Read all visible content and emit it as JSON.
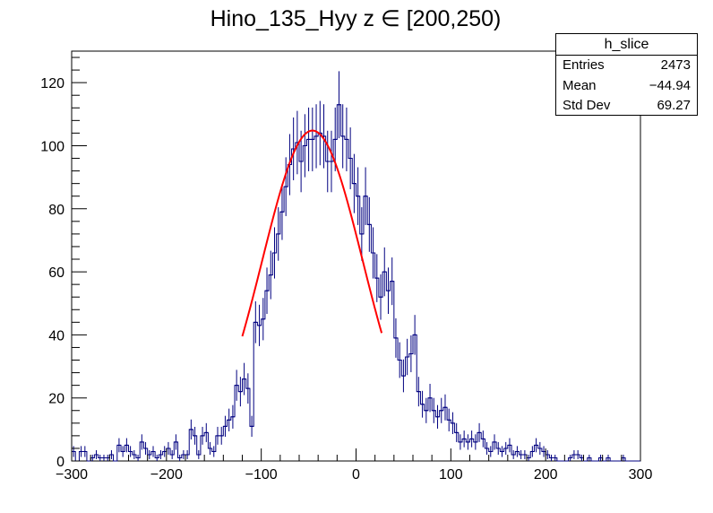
{
  "chart_data": {
    "type": "histogram",
    "title": "Hino_135_Hyy z  ∈ [200,250)",
    "xlabel": "",
    "ylabel": "",
    "xlim": [
      -300,
      300
    ],
    "ylim": [
      0,
      130
    ],
    "x_ticks": [
      "−300",
      "−200",
      "−100",
      "0",
      "100",
      "200",
      "300"
    ],
    "x_tick_values": [
      -300,
      -200,
      -100,
      0,
      100,
      200,
      300
    ],
    "y_ticks": [
      "0",
      "20",
      "40",
      "60",
      "80",
      "100",
      "120"
    ],
    "y_tick_values": [
      0,
      20,
      40,
      60,
      80,
      100,
      120
    ],
    "grid": false,
    "histogram_color": "#000080",
    "fit_color": "#ff0000",
    "bin_width": 4,
    "bin_start": -300,
    "counts": [
      3,
      0,
      3,
      3,
      0,
      1,
      2,
      1,
      1,
      1,
      2,
      0,
      5,
      3,
      5,
      3,
      2,
      1,
      6,
      4,
      2,
      3,
      1,
      2,
      3,
      4,
      2,
      6,
      1,
      2,
      2,
      10,
      8,
      2,
      8,
      9,
      4,
      3,
      8,
      8,
      11,
      13,
      14,
      24,
      22,
      26,
      23,
      11,
      44,
      43,
      45,
      54,
      59,
      66,
      72,
      79,
      87,
      94,
      99,
      101,
      95,
      100,
      102,
      102,
      103,
      104,
      103,
      95,
      95,
      102,
      113,
      103,
      102,
      96,
      88,
      84,
      72,
      84,
      75,
      66,
      58,
      52,
      60,
      54,
      57,
      39,
      32,
      27,
      33,
      34,
      40,
      22,
      18,
      16,
      20,
      16,
      14,
      16,
      17,
      13,
      12,
      9,
      6,
      7,
      6,
      7,
      6,
      9,
      7,
      4,
      3,
      6,
      4,
      3,
      4,
      5,
      2,
      3,
      2,
      2,
      1,
      3,
      5,
      4,
      3,
      2,
      1,
      1,
      0,
      0,
      0,
      1,
      2,
      2,
      1,
      0,
      1,
      0,
      0,
      1,
      0,
      1,
      0,
      0,
      0,
      1,
      0,
      0,
      0,
      0
    ],
    "fit": {
      "type": "gaussian",
      "constant": 104.8,
      "mean": -46,
      "sigma": 53,
      "range": [
        -120,
        27
      ]
    }
  },
  "stats": {
    "name": "h_slice",
    "entries_label": "Entries",
    "entries_value": "2473",
    "mean_label": "Mean",
    "mean_value": "−44.94",
    "stddev_label": "Std Dev",
    "stddev_value": "69.27"
  }
}
